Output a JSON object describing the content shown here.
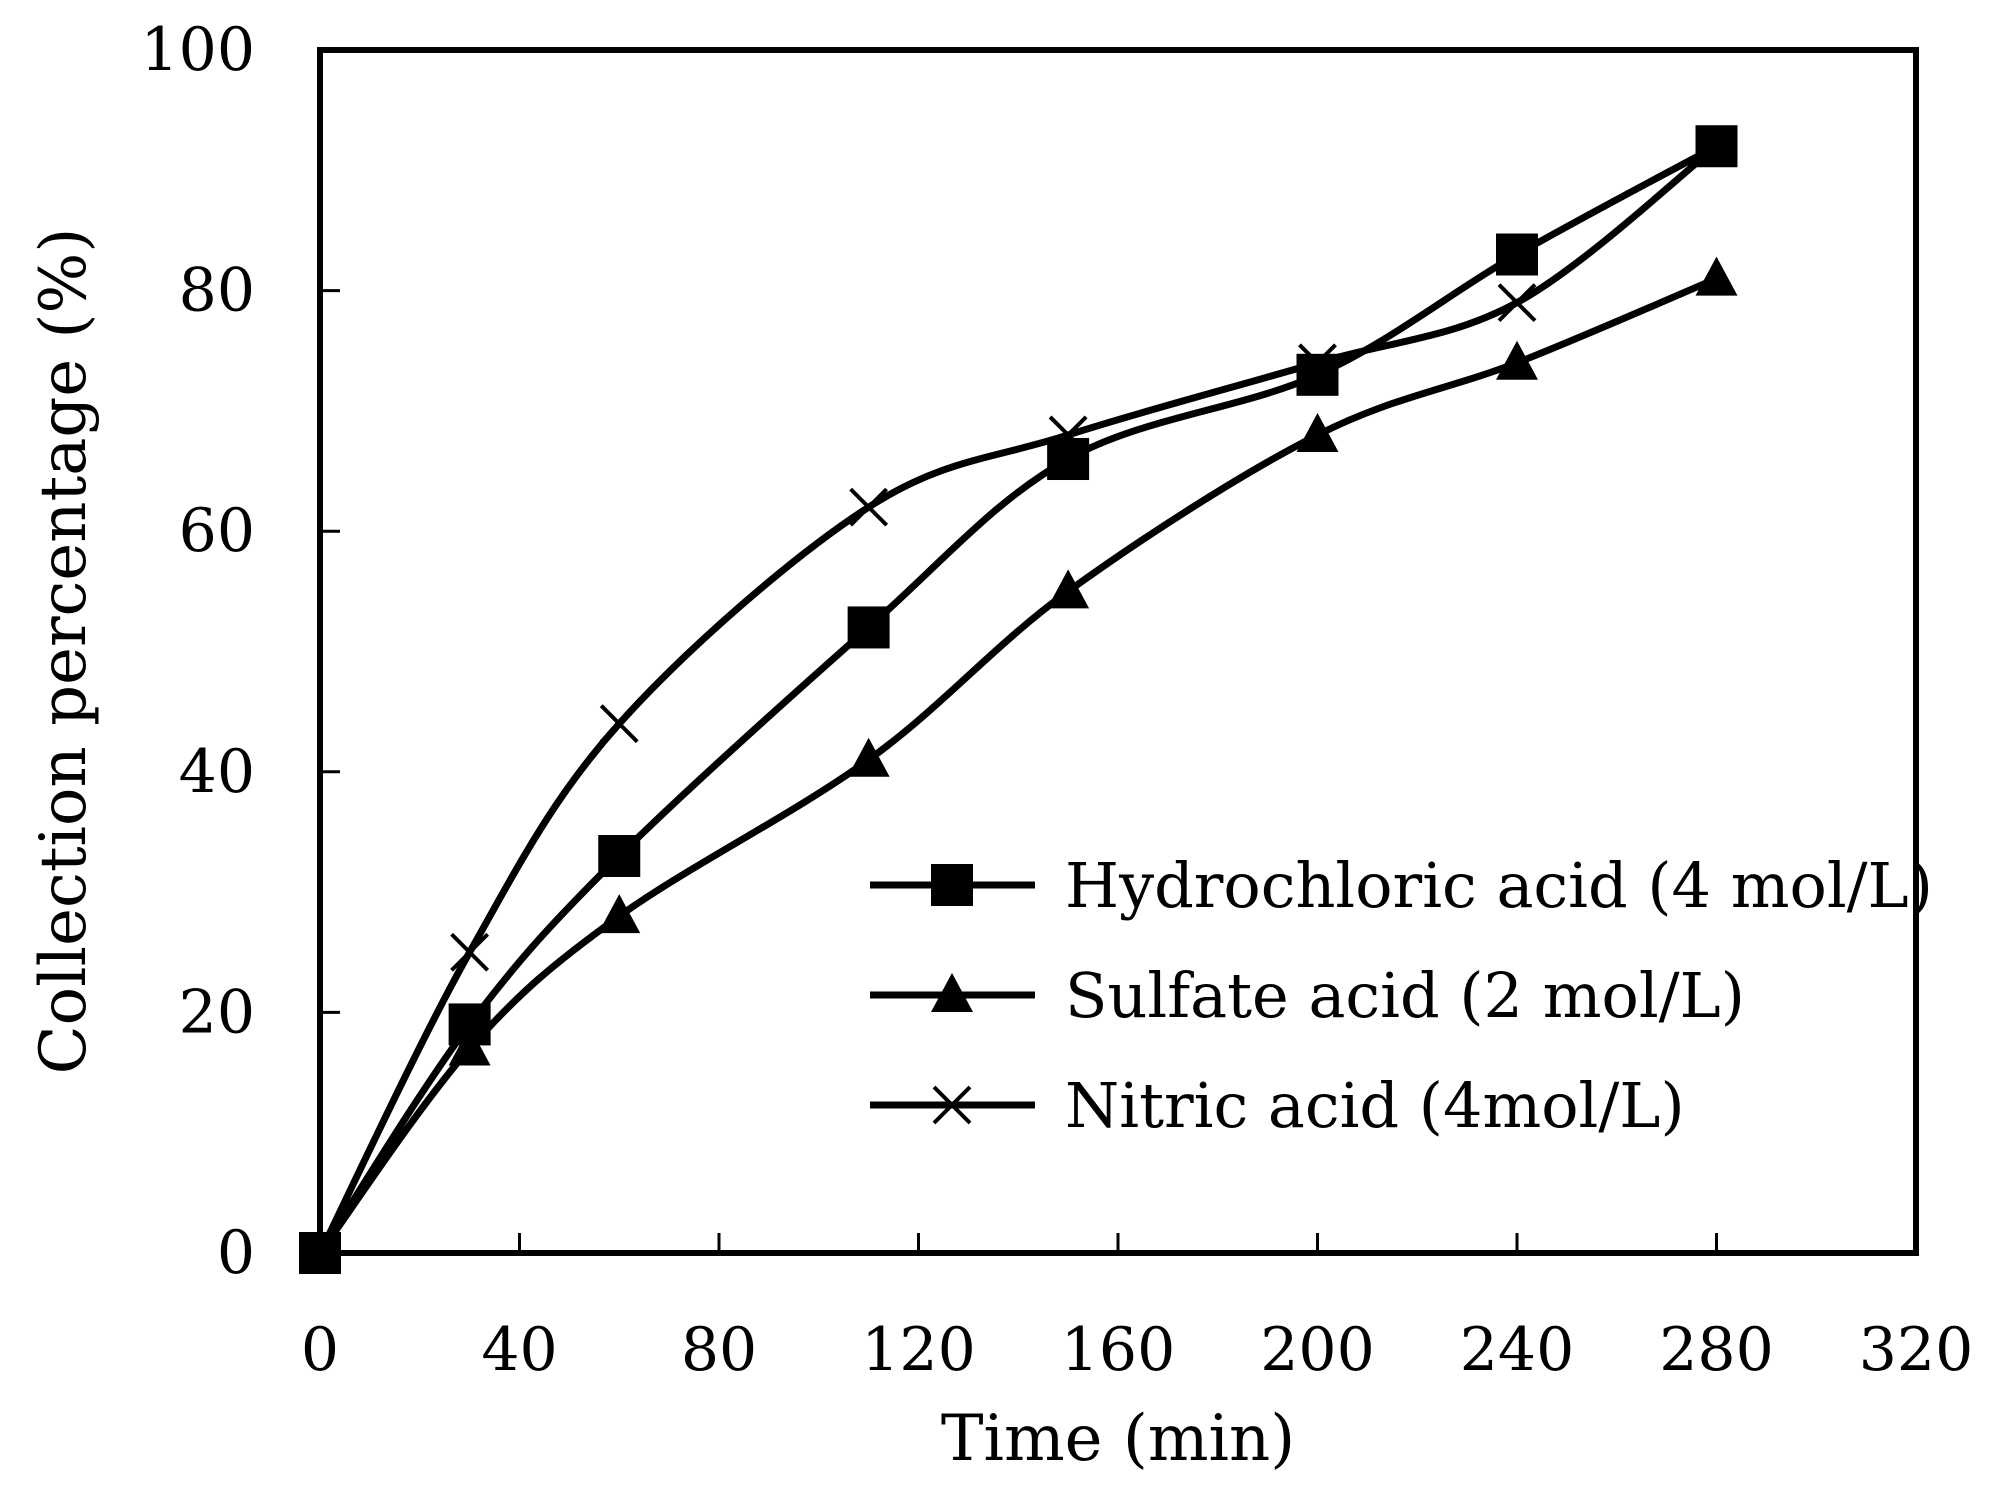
{
  "chart_data": {
    "type": "line",
    "title": "",
    "xlabel": "Time (min)",
    "ylabel": "Collection percentage (%)",
    "xlim": [
      0,
      320
    ],
    "ylim": [
      0,
      100
    ],
    "xticks": [
      0,
      40,
      80,
      120,
      160,
      200,
      240,
      280,
      320
    ],
    "yticks": [
      0,
      20,
      40,
      60,
      80,
      100
    ],
    "grid": false,
    "legend_position": "center-right",
    "series": [
      {
        "name": "Hydrochloric acid (4 mol/L)",
        "marker": "square",
        "x": [
          0,
          30,
          60,
          110,
          150,
          200,
          240,
          280
        ],
        "values": [
          0,
          19,
          33,
          52,
          66,
          73,
          83,
          92
        ]
      },
      {
        "name": "Sulfate acid (2 mol/L)",
        "marker": "triangle",
        "x": [
          0,
          30,
          60,
          110,
          150,
          200,
          240,
          280
        ],
        "values": [
          0,
          17,
          28,
          41,
          55,
          68,
          74,
          81
        ]
      },
      {
        "name": "Nitric acid (4mol/L)",
        "marker": "x",
        "x": [
          0,
          30,
          60,
          110,
          150,
          200,
          240,
          280
        ],
        "values": [
          0,
          25,
          44,
          62,
          68,
          74,
          79,
          92
        ]
      }
    ],
    "colors": {
      "line": "#000000",
      "background": "#ffffff"
    }
  }
}
